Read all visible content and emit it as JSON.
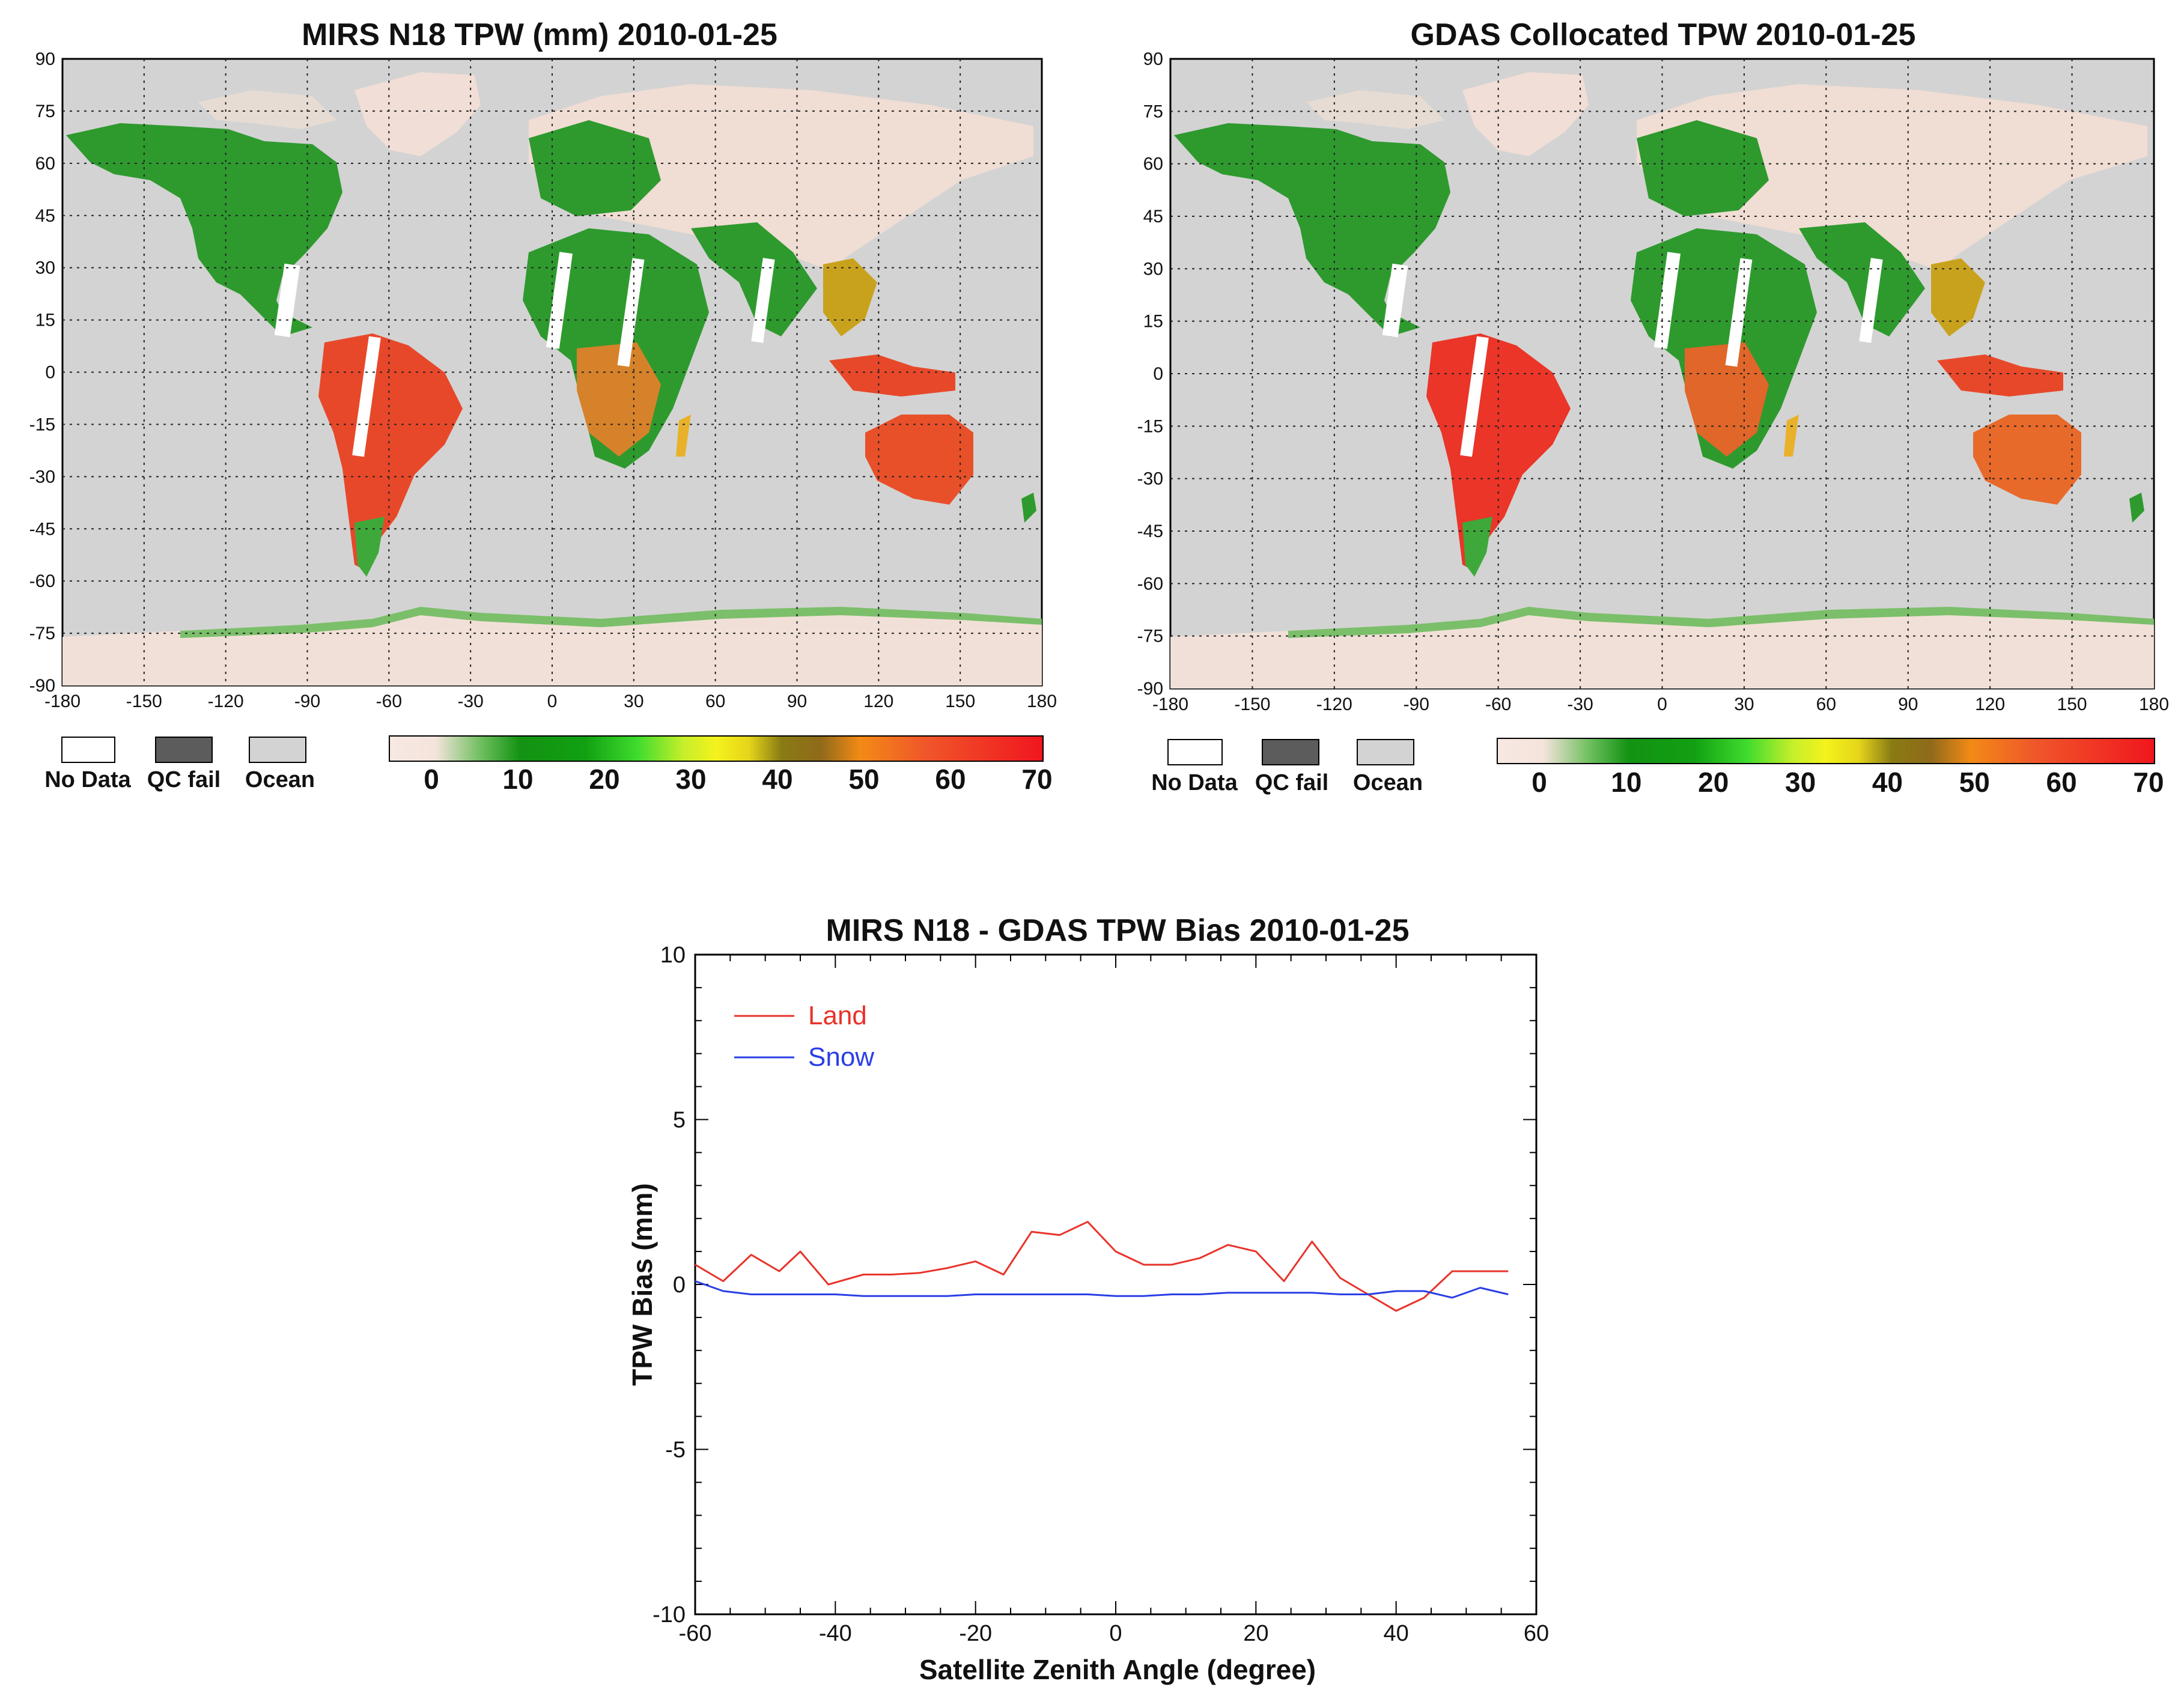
{
  "maps": [
    {
      "title": "MIRS N18 TPW (mm) 2010-01-25",
      "lat_ticks": [
        "90",
        "75",
        "60",
        "45",
        "30",
        "15",
        "0",
        "-15",
        "-30",
        "-45",
        "-60",
        "-75",
        "-90"
      ],
      "lon_ticks": [
        "-180",
        "-150",
        "-120",
        "-90",
        "-60",
        "-30",
        "0",
        "30",
        "60",
        "90",
        "120",
        "150",
        "180"
      ],
      "legend": [
        "No Data",
        "QC fail",
        "Ocean"
      ],
      "colorbar_ticks": [
        "0",
        "10",
        "20",
        "30",
        "40",
        "50",
        "60",
        "70"
      ]
    },
    {
      "title": "GDAS Collocated TPW 2010-01-25",
      "lat_ticks": [
        "90",
        "75",
        "60",
        "45",
        "30",
        "15",
        "0",
        "-15",
        "-30",
        "-45",
        "-60",
        "-75",
        "-90"
      ],
      "lon_ticks": [
        "-180",
        "-150",
        "-120",
        "-90",
        "-60",
        "-30",
        "0",
        "30",
        "60",
        "90",
        "120",
        "150",
        "180"
      ],
      "legend": [
        "No Data",
        "QC fail",
        "Ocean"
      ],
      "colorbar_ticks": [
        "0",
        "10",
        "20",
        "30",
        "40",
        "50",
        "60",
        "70"
      ]
    }
  ],
  "colors": {
    "ocean": "#d3d3d3",
    "qc_fail": "#5c5c5c",
    "no_data": "#ffffff",
    "land_green": "#2e9a2e",
    "land": "#e8332a",
    "snow": "#2a3ee6"
  },
  "chart_data": {
    "type": "line",
    "title": "MIRS N18 - GDAS TPW Bias 2010-01-25",
    "xlabel": "Satellite Zenith Angle (degree)",
    "ylabel": "TPW Bias (mm)",
    "xlim": [
      -60,
      60
    ],
    "ylim": [
      -10,
      10
    ],
    "x_ticks": [
      "-60",
      "-40",
      "-20",
      "0",
      "20",
      "40",
      "60"
    ],
    "y_ticks": [
      "10",
      "5",
      "0",
      "-5",
      "-10"
    ],
    "legend": [
      "Land",
      "Snow"
    ],
    "series": [
      {
        "name": "Land",
        "color": "#e8332a",
        "x": [
          -60,
          -56,
          -52,
          -48,
          -45,
          -41,
          -36,
          -32,
          -28,
          -24,
          -20,
          -16,
          -12,
          -8,
          -4,
          0,
          4,
          8,
          12,
          16,
          20,
          24,
          28,
          32,
          36,
          40,
          44,
          48,
          52,
          56
        ],
        "y": [
          0.6,
          0.1,
          0.9,
          0.4,
          1.0,
          0.0,
          0.3,
          0.3,
          0.35,
          0.5,
          0.7,
          0.3,
          1.6,
          1.5,
          1.9,
          1.0,
          0.6,
          0.6,
          0.8,
          1.2,
          1.0,
          0.1,
          1.3,
          0.2,
          -0.3,
          -0.8,
          -0.4,
          0.4,
          0.4,
          0.4
        ]
      },
      {
        "name": "Snow",
        "color": "#2a3ee6",
        "x": [
          -60,
          -56,
          -52,
          -48,
          -44,
          -40,
          -36,
          -32,
          -28,
          -24,
          -20,
          -16,
          -12,
          -8,
          -4,
          0,
          4,
          8,
          12,
          16,
          20,
          24,
          28,
          32,
          36,
          40,
          44,
          48,
          52,
          56
        ],
        "y": [
          0.1,
          -0.2,
          -0.3,
          -0.3,
          -0.3,
          -0.3,
          -0.35,
          -0.35,
          -0.35,
          -0.35,
          -0.3,
          -0.3,
          -0.3,
          -0.3,
          -0.3,
          -0.35,
          -0.35,
          -0.3,
          -0.3,
          -0.25,
          -0.25,
          -0.25,
          -0.25,
          -0.3,
          -0.3,
          -0.2,
          -0.2,
          -0.4,
          -0.1,
          -0.3
        ]
      }
    ]
  }
}
